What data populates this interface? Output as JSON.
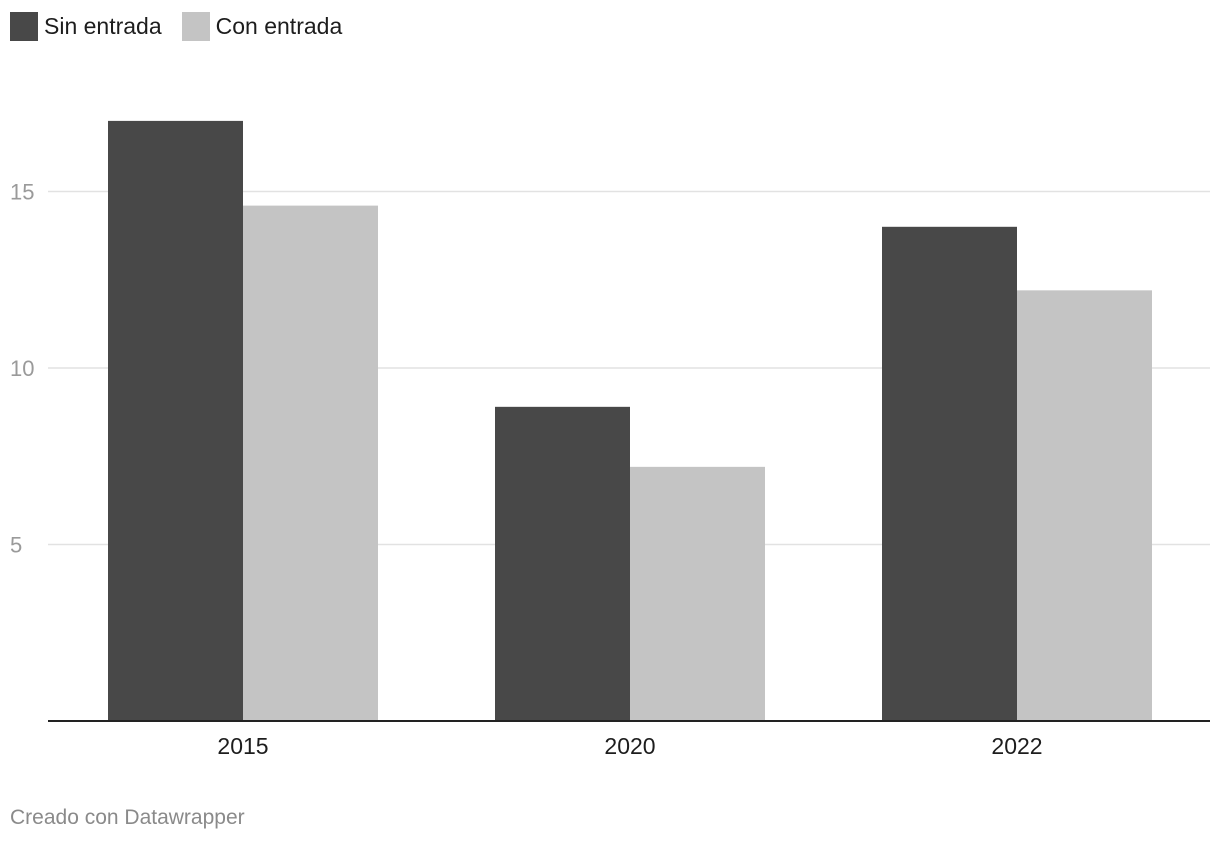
{
  "chart_data": {
    "type": "bar",
    "categories": [
      "2015",
      "2020",
      "2022"
    ],
    "series": [
      {
        "name": "Sin entrada",
        "values": [
          17.0,
          8.9,
          14.0
        ],
        "color": "#484848"
      },
      {
        "name": "Con entrada",
        "values": [
          14.6,
          7.2,
          12.2
        ],
        "color": "#c4c4c4"
      }
    ],
    "yticks": [
      5,
      10,
      15
    ],
    "ylim": [
      0,
      17.8
    ],
    "grid": true,
    "legend": "top-left",
    "title": "",
    "xlabel": "",
    "ylabel": ""
  },
  "legend": {
    "items": [
      {
        "label": "Sin entrada",
        "color": "#484848"
      },
      {
        "label": "Con entrada",
        "color": "#c4c4c4"
      }
    ]
  },
  "footer": {
    "credit": "Creado con Datawrapper"
  },
  "colors": {
    "grid": "#e2e2e2",
    "axis": "#222222",
    "tick_label": "#9a9a9a",
    "category_label": "#1d1d1d"
  }
}
